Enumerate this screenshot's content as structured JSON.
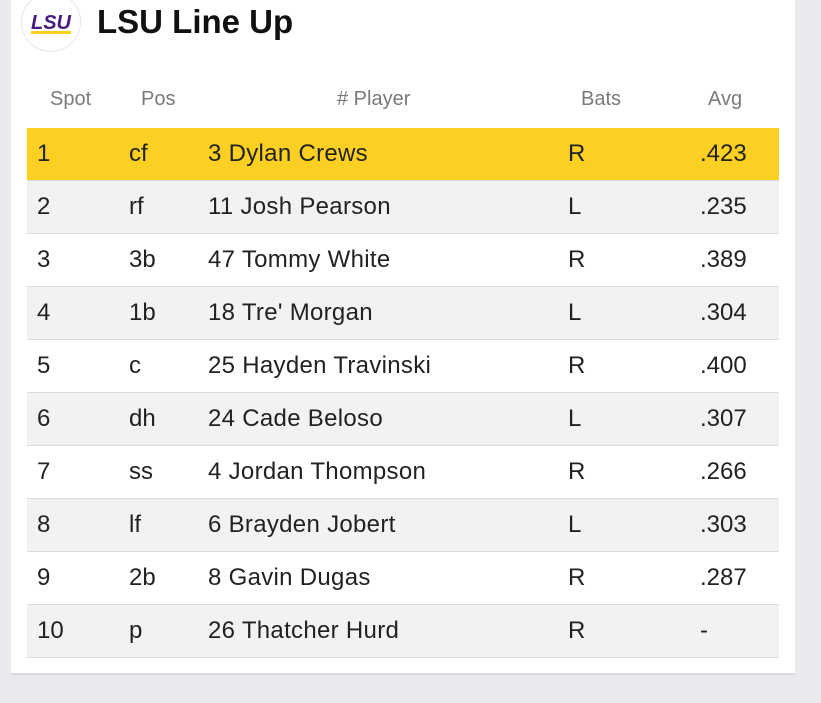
{
  "header": {
    "logo_text": "LSU",
    "logo_icon": "lsu-logo-icon",
    "title": "LSU Line Up"
  },
  "colors": {
    "highlight": "#fcd022",
    "lsu_purple": "#461d7c"
  },
  "table": {
    "columns": {
      "spot": "Spot",
      "pos": "Pos",
      "player": "# Player",
      "bats": "Bats",
      "avg": "Avg"
    },
    "rows": [
      {
        "spot": "1",
        "pos": "cf",
        "player": "3 Dylan Crews",
        "bats": "R",
        "avg": ".423"
      },
      {
        "spot": "2",
        "pos": "rf",
        "player": "11 Josh Pearson",
        "bats": "L",
        "avg": ".235"
      },
      {
        "spot": "3",
        "pos": "3b",
        "player": "47 Tommy White",
        "bats": "R",
        "avg": ".389"
      },
      {
        "spot": "4",
        "pos": "1b",
        "player": "18 Tre' Morgan",
        "bats": "L",
        "avg": ".304"
      },
      {
        "spot": "5",
        "pos": "c",
        "player": "25 Hayden Travinski",
        "bats": "R",
        "avg": ".400"
      },
      {
        "spot": "6",
        "pos": "dh",
        "player": "24 Cade Beloso",
        "bats": "L",
        "avg": ".307"
      },
      {
        "spot": "7",
        "pos": "ss",
        "player": "4 Jordan Thompson",
        "bats": "R",
        "avg": ".266"
      },
      {
        "spot": "8",
        "pos": "lf",
        "player": "6 Brayden Jobert",
        "bats": "L",
        "avg": ".303"
      },
      {
        "spot": "9",
        "pos": "2b",
        "player": "8 Gavin Dugas",
        "bats": "R",
        "avg": ".287"
      },
      {
        "spot": "10",
        "pos": "p",
        "player": "26 Thatcher Hurd",
        "bats": "R",
        "avg": "-"
      }
    ]
  }
}
